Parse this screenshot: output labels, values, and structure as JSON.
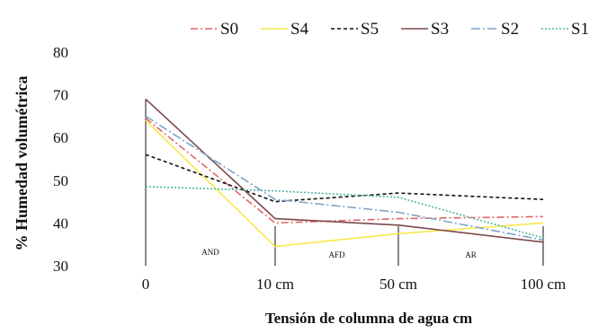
{
  "chart_data": {
    "type": "line",
    "categories": [
      "0",
      "10 cm",
      "50 cm",
      "100 cm"
    ],
    "ylabel": "% Humedad volumétrica",
    "xlabel": "Tensión de columna de agua cm",
    "ylim": [
      30,
      80
    ],
    "yticks": [
      "30",
      "40",
      "50",
      "60",
      "70",
      "80"
    ],
    "regions": [
      "AND",
      "AFD",
      "AR"
    ],
    "legend_position": "top",
    "grid": false,
    "series": [
      {
        "name": "S0",
        "values": [
          64.5,
          40.0,
          41.0,
          41.5
        ],
        "color": "#e06666",
        "dash": "8,3,2,3"
      },
      {
        "name": "S4",
        "values": [
          64.0,
          34.5,
          37.5,
          40.0
        ],
        "color": "#f7e84a",
        "dash": ""
      },
      {
        "name": "S5",
        "values": [
          56.0,
          45.0,
          47.0,
          45.5
        ],
        "color": "#111111",
        "dash": "4,3"
      },
      {
        "name": "S3",
        "values": [
          69.0,
          41.0,
          39.5,
          35.5
        ],
        "color": "#7d4a4a",
        "dash": ""
      },
      {
        "name": "S2",
        "values": [
          65.0,
          45.5,
          42.5,
          36.0
        ],
        "color": "#7ea3c9",
        "dash": "10,3,2,3"
      },
      {
        "name": "S1",
        "values": [
          48.5,
          47.5,
          46.0,
          36.5
        ],
        "color": "#4bb5a7",
        "dash": "2,2"
      }
    ]
  }
}
